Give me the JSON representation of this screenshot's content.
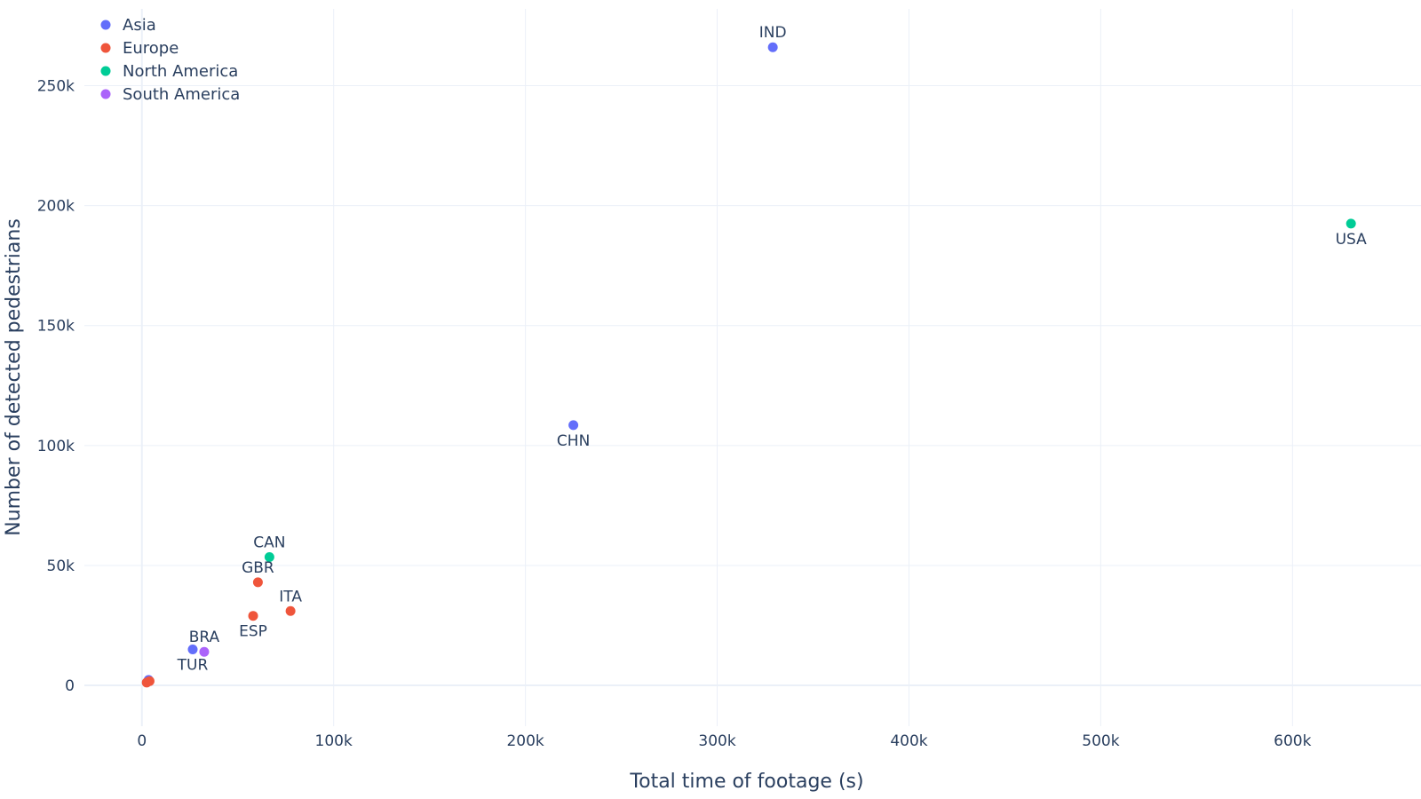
{
  "chart_data": {
    "type": "scatter",
    "xlabel": "Total time of footage (s)",
    "ylabel": "Number of detected pedestrians",
    "xlim": [
      -30000,
      667000
    ],
    "ylim": [
      -17000,
      282000
    ],
    "xticks": [
      0,
      100000,
      200000,
      300000,
      400000,
      500000,
      600000
    ],
    "xtick_labels": [
      "0",
      "100k",
      "200k",
      "300k",
      "400k",
      "500k",
      "600k"
    ],
    "yticks": [
      0,
      50000,
      100000,
      150000,
      200000,
      250000
    ],
    "ytick_labels": [
      "0",
      "50k",
      "100k",
      "150k",
      "200k",
      "250k"
    ],
    "grid": true,
    "legend_position": "top-left",
    "series": [
      {
        "name": "Asia",
        "color": "#636efa",
        "points": [
          {
            "label": "IND",
            "x": 329000,
            "y": 266000,
            "label_pos": "top"
          },
          {
            "label": "CHN",
            "x": 225000,
            "y": 108500,
            "label_pos": "bottom"
          },
          {
            "label": "TUR",
            "x": 26500,
            "y": 15000,
            "label_pos": "bottom"
          },
          {
            "label": "",
            "x": 3500,
            "y": 2300,
            "label_pos": "none"
          }
        ]
      },
      {
        "name": "Europe",
        "color": "#ef553b",
        "points": [
          {
            "label": "GBR",
            "x": 60500,
            "y": 43000,
            "label_pos": "top"
          },
          {
            "label": "ITA",
            "x": 77500,
            "y": 31000,
            "label_pos": "top"
          },
          {
            "label": "ESP",
            "x": 58000,
            "y": 29000,
            "label_pos": "bottom"
          },
          {
            "label": "",
            "x": 4000,
            "y": 1800,
            "label_pos": "none"
          },
          {
            "label": "",
            "x": 2500,
            "y": 1200,
            "label_pos": "none"
          }
        ]
      },
      {
        "name": "North America",
        "color": "#00cc96",
        "points": [
          {
            "label": "USA",
            "x": 630500,
            "y": 192500,
            "label_pos": "bottom"
          },
          {
            "label": "CAN",
            "x": 66500,
            "y": 53500,
            "label_pos": "top"
          }
        ]
      },
      {
        "name": "South America",
        "color": "#ab63fa",
        "points": [
          {
            "label": "BRA",
            "x": 32500,
            "y": 14000,
            "label_pos": "top"
          }
        ]
      }
    ]
  }
}
